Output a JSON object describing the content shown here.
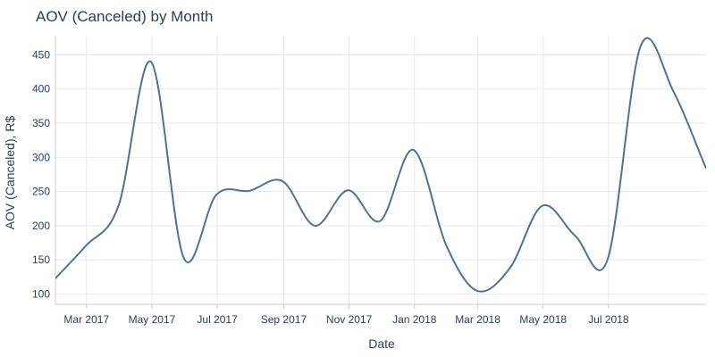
{
  "chart_data": {
    "type": "line",
    "title": "AOV (Canceled) by Month",
    "xlabel": "Date",
    "ylabel": "AOV (Canceled), R$",
    "x": [
      "2017-01-31",
      "2017-02-28",
      "2017-03-31",
      "2017-04-30",
      "2017-05-31",
      "2017-06-30",
      "2017-07-31",
      "2017-08-31",
      "2017-09-30",
      "2017-10-31",
      "2017-11-30",
      "2017-12-31",
      "2018-01-31",
      "2018-02-28",
      "2018-03-31",
      "2018-04-30",
      "2018-05-31",
      "2018-06-30",
      "2018-07-31",
      "2018-08-31",
      "2018-09-30"
    ],
    "series": [
      {
        "values": [
          123,
          170,
          230,
          440,
          152,
          245,
          251,
          265,
          200,
          252,
          207,
          311,
          170,
          105,
          138,
          229,
          185,
          150,
          463,
          395,
          284
        ]
      }
    ],
    "ylim": [
      85,
      478
    ],
    "xlim": [
      "2017-01-31",
      "2018-09-30"
    ],
    "yticks": [
      100,
      150,
      200,
      250,
      300,
      350,
      400,
      450
    ],
    "xticks": [
      {
        "date": "2017-03-01",
        "label": "Mar 2017"
      },
      {
        "date": "2017-05-01",
        "label": "May 2017"
      },
      {
        "date": "2017-07-01",
        "label": "Jul 2017"
      },
      {
        "date": "2017-09-01",
        "label": "Sep 2017"
      },
      {
        "date": "2017-11-01",
        "label": "Nov 2017"
      },
      {
        "date": "2018-01-01",
        "label": "Jan 2018"
      },
      {
        "date": "2018-03-01",
        "label": "Mar 2018"
      },
      {
        "date": "2018-05-01",
        "label": "May 2018"
      },
      {
        "date": "2018-07-01",
        "label": "Jul 2018"
      }
    ],
    "grid": true,
    "line_color": "#4c7396",
    "grid_color": "#e6e9ee",
    "text_color": "#2a3f5f"
  }
}
